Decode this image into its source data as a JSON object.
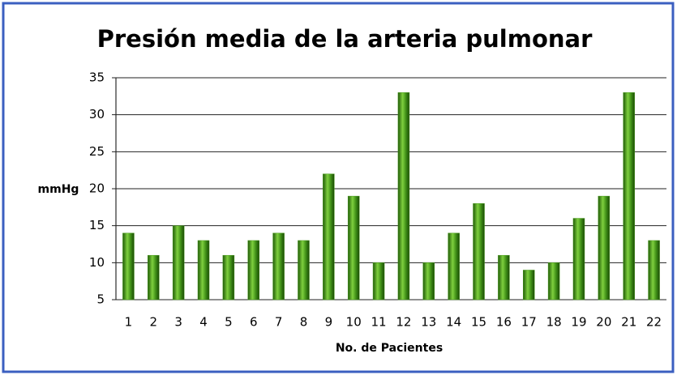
{
  "chart_data": {
    "type": "bar",
    "title": "Presión media de la arteria pulmonar",
    "y_label": "mmHg",
    "x_label": "No. de Pacientes",
    "categories": [
      "1",
      "2",
      "3",
      "4",
      "5",
      "6",
      "7",
      "8",
      "9",
      "10",
      "11",
      "12",
      "13",
      "14",
      "15",
      "16",
      "17",
      "18",
      "19",
      "20",
      "21",
      "22"
    ],
    "values": [
      14,
      11,
      15,
      13,
      11,
      13,
      14,
      13,
      22,
      19,
      10,
      33,
      10,
      14,
      18,
      11,
      9,
      10,
      16,
      19,
      33,
      13
    ],
    "color": "#4a9a1e",
    "ylim": [
      5,
      35
    ],
    "yticks": [
      5,
      10,
      15,
      20,
      25,
      30,
      35
    ],
    "grid": true
  }
}
